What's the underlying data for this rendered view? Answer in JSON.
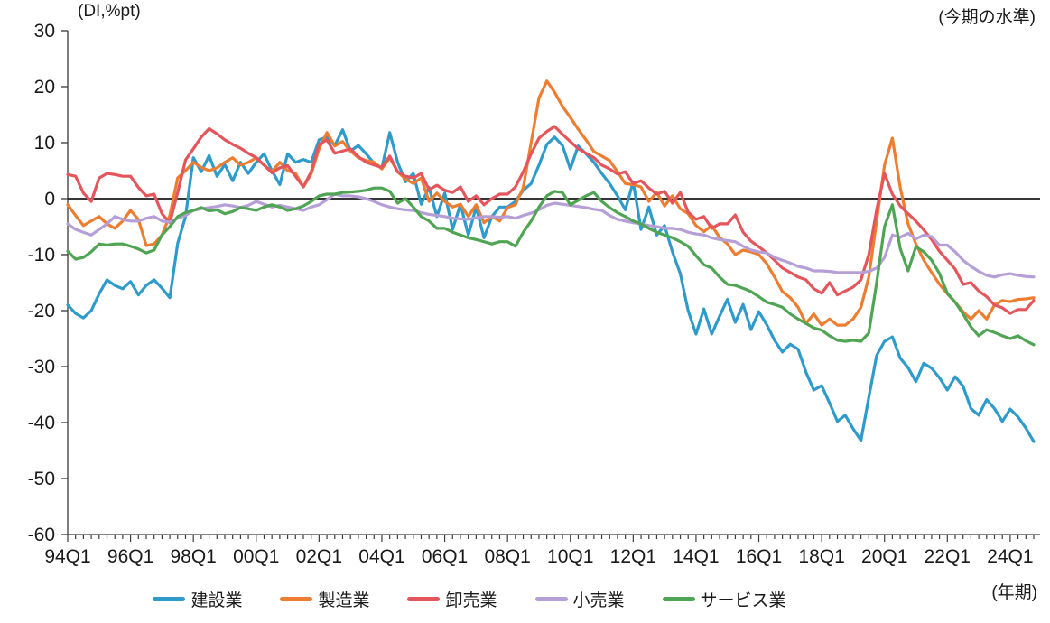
{
  "annotations": {
    "y_axis_unit": "(DI,%pt)",
    "right_header": "(今期の水準)",
    "x_axis_unit": "(年期)"
  },
  "chart_data": {
    "type": "line",
    "x_start": "1994Q1",
    "x_end": "2024Q4",
    "x_frequency": "quarterly",
    "x_tick_labels": [
      "94Q1",
      "96Q1",
      "98Q1",
      "00Q1",
      "02Q1",
      "04Q1",
      "06Q1",
      "08Q1",
      "10Q1",
      "12Q1",
      "14Q1",
      "16Q1",
      "18Q1",
      "20Q1",
      "22Q1",
      "24Q1"
    ],
    "x_label_every_n_quarters": 8,
    "ylim": [
      -60,
      30
    ],
    "y_ticks": [
      30,
      20,
      10,
      0,
      -10,
      -20,
      -30,
      -40,
      -50,
      -60
    ],
    "zero_line": true,
    "grid": false,
    "legend_position": "bottom",
    "axis_color": "#3a3a3a",
    "text_color": "#1a1a1a",
    "series": [
      {
        "name": "建設業",
        "color": "#2E9BCB",
        "values": [
          -19,
          -20.5,
          -21.3,
          -20,
          -17,
          -14.5,
          -15.5,
          -16.1,
          -14.8,
          -17.2,
          -15.5,
          -14.5,
          -16,
          -17.7,
          -8,
          -3.2,
          7.3,
          4.8,
          7.7,
          4,
          6.1,
          3.2,
          6.5,
          4.5,
          6.5,
          8,
          5,
          2.5,
          8,
          6.5,
          7,
          6.5,
          10.5,
          11,
          9.5,
          12.3,
          8.5,
          9.5,
          8,
          6.3,
          5.5,
          11.8,
          6.5,
          3,
          4.5,
          -1,
          2,
          -3.2,
          1,
          -5.5,
          -1,
          -6.5,
          -1.5,
          -7,
          -3.2,
          -1.5,
          -1.5,
          -0.5,
          1.5,
          2.7,
          6,
          9.7,
          11,
          9.5,
          5.3,
          9.4,
          8,
          6.5,
          4.5,
          2.7,
          0.5,
          -2,
          3,
          -5.5,
          -1.5,
          -6.5,
          -4.8,
          -9.5,
          -13.4,
          -20,
          -24.2,
          -19.7,
          -24.2,
          -21,
          -18,
          -22.1,
          -18.9,
          -23.4,
          -20.2,
          -22.5,
          -25.3,
          -27.4,
          -26,
          -26.9,
          -31,
          -34.2,
          -33.4,
          -36.5,
          -39.8,
          -38.7,
          -41.1,
          -43.2,
          -35.5,
          -28,
          -25.5,
          -24.7,
          -28.5,
          -30.2,
          -32.7,
          -29.4,
          -30.3,
          -32,
          -34.2,
          -31.8,
          -33.5,
          -37.5,
          -38.7,
          -35.9,
          -37.5,
          -39.8,
          -37.6,
          -39,
          -41,
          -43.4
        ]
      },
      {
        "name": "製造業",
        "color": "#ED7D31",
        "values": [
          -1.1,
          -3,
          -4.8,
          -4,
          -3.2,
          -4.5,
          -5.3,
          -4,
          -2.1,
          -3.7,
          -8.4,
          -8.1,
          -6.5,
          -3,
          3.7,
          5,
          6.5,
          5.6,
          5,
          5.5,
          6.5,
          7.3,
          6,
          6.5,
          7.3,
          6,
          4.8,
          6.5,
          5,
          4.5,
          2.1,
          4.4,
          8.9,
          11.8,
          9.4,
          10.2,
          8.5,
          7.3,
          6.8,
          6.5,
          5.3,
          7.3,
          4.8,
          3.5,
          2.7,
          3.7,
          -0.5,
          1,
          -0.5,
          -1.5,
          -1,
          -3.2,
          -1.1,
          -4.3,
          -3.2,
          -4,
          -1.6,
          -1.1,
          2,
          10,
          18,
          21,
          19,
          16.5,
          14.5,
          12.4,
          10.5,
          8.4,
          7.6,
          6.8,
          4.8,
          2.7,
          2.5,
          2.1,
          -0.5,
          1.1,
          -1.3,
          0.5,
          -1.8,
          -2.7,
          -4.8,
          -5.9,
          -4.8,
          -6.9,
          -8.1,
          -10,
          -9.2,
          -9.5,
          -10,
          -11.6,
          -14,
          -16.6,
          -17.7,
          -19.4,
          -22.3,
          -20.6,
          -22.6,
          -21.5,
          -22.6,
          -22.6,
          -21.5,
          -19.4,
          -14,
          -4,
          6,
          10.8,
          2,
          -4.5,
          -8.1,
          -11,
          -13.2,
          -15.3,
          -17,
          -18.5,
          -20.2,
          -21.5,
          -20,
          -21.5,
          -19,
          -18.2,
          -18.4,
          -18,
          -17.9,
          -17.7
        ]
      },
      {
        "name": "卸売業",
        "color": "#E4555C",
        "values": [
          4.3,
          4,
          1,
          -0.5,
          3.7,
          4.5,
          4.3,
          4,
          4,
          2,
          0.5,
          0.8,
          -2.7,
          -4.3,
          1.1,
          6.9,
          8.9,
          11,
          12.5,
          11.6,
          10.5,
          9.7,
          9,
          8.1,
          7.3,
          6,
          4.6,
          5.5,
          5.9,
          4,
          2.1,
          4.8,
          9.7,
          10.5,
          8.1,
          8.5,
          8.9,
          7.5,
          6.5,
          6,
          5.6,
          7.6,
          4.8,
          4,
          3.7,
          4.5,
          1.6,
          2.4,
          1.5,
          1.1,
          2.1,
          -0.5,
          0.5,
          -1.1,
          0,
          0.8,
          0.8,
          2.1,
          4.8,
          8,
          10.8,
          12,
          12.9,
          11.5,
          10.2,
          8.9,
          8.1,
          7.3,
          6,
          5.3,
          4.4,
          4.8,
          2.7,
          3.2,
          1.9,
          0.8,
          1.3,
          -0.8,
          1.1,
          -2.4,
          -3.7,
          -3.2,
          -5.3,
          -4.5,
          -4.5,
          -2.9,
          -6,
          -7.6,
          -8.6,
          -9.7,
          -11,
          -12.4,
          -13.2,
          -14,
          -14.5,
          -16.1,
          -16.9,
          -15,
          -17.2,
          -16.5,
          -15.8,
          -14.5,
          -10,
          -2,
          4.5,
          0.8,
          -1.3,
          -2.7,
          -4,
          -5.6,
          -7.3,
          -9.4,
          -11,
          -12.6,
          -15.3,
          -15,
          -16.5,
          -17.5,
          -19,
          -19.5,
          -20.5,
          -19.8,
          -19.8,
          -18.2
        ]
      },
      {
        "name": "小売業",
        "color": "#B59FD6",
        "values": [
          -4.5,
          -5.5,
          -6,
          -6.5,
          -5.5,
          -4.5,
          -3.2,
          -3.7,
          -4,
          -4,
          -3.5,
          -3.2,
          -4,
          -4.2,
          -3.5,
          -3,
          -2.1,
          -1.8,
          -1.6,
          -1.4,
          -1.1,
          -1.3,
          -1.6,
          -1.2,
          -0.5,
          -1,
          -1.5,
          -1.2,
          -1.5,
          -1.8,
          -2.1,
          -1.5,
          -1.1,
          -0.2,
          0.8,
          0.5,
          0.5,
          0.3,
          0,
          -0.5,
          -1.1,
          -1.5,
          -1.8,
          -2,
          -2.1,
          -2.5,
          -2.8,
          -3,
          -3.2,
          -3.5,
          -3.6,
          -3.7,
          -3.4,
          -3.2,
          -3.2,
          -3.3,
          -3.2,
          -3.5,
          -3,
          -2.6,
          -2,
          -1.2,
          -0.8,
          -1,
          -1.2,
          -1.4,
          -1.6,
          -1.9,
          -2.1,
          -3,
          -3.7,
          -4,
          -4.3,
          -4.5,
          -4.8,
          -5,
          -5.3,
          -5.3,
          -5.5,
          -6,
          -6.3,
          -6.5,
          -7,
          -7.3,
          -7.5,
          -7.7,
          -8.5,
          -9.2,
          -9.5,
          -9.7,
          -10.5,
          -11,
          -11.5,
          -12.1,
          -12.4,
          -12.9,
          -12.9,
          -13,
          -13.2,
          -13.2,
          -13.2,
          -13.2,
          -13,
          -12.4,
          -10.5,
          -6.5,
          -6.9,
          -6.2,
          -7.2,
          -6.5,
          -6.8,
          -8.3,
          -8.3,
          -9.5,
          -11,
          -12.1,
          -13,
          -13.7,
          -14,
          -13.6,
          -13.4,
          -13.7,
          -13.9,
          -14
        ]
      },
      {
        "name": "サービス業",
        "color": "#4FA553",
        "values": [
          -9.4,
          -10.8,
          -10.5,
          -9.5,
          -8.1,
          -8.3,
          -8.1,
          -8.1,
          -8.5,
          -9,
          -9.7,
          -9.2,
          -6.5,
          -5,
          -3.2,
          -2.5,
          -2.1,
          -1.6,
          -2.2,
          -2,
          -2.7,
          -2.3,
          -1.6,
          -1.8,
          -2.1,
          -1.5,
          -1.1,
          -1.5,
          -2.1,
          -1.8,
          -1.3,
          -0.5,
          0.5,
          0.8,
          0.8,
          1.1,
          1.2,
          1.3,
          1.5,
          1.9,
          1.9,
          1.3,
          -0.8,
          0,
          -1.5,
          -3.2,
          -4,
          -5.3,
          -5.3,
          -6,
          -6.5,
          -7,
          -7.3,
          -7.7,
          -8.1,
          -7.7,
          -7.7,
          -8.5,
          -6,
          -4,
          -1.5,
          0.5,
          1.3,
          1.1,
          -1.1,
          -0.3,
          0.5,
          1.1,
          -0.5,
          -1.6,
          -2.5,
          -3.2,
          -4,
          -4.5,
          -5.3,
          -6,
          -6.5,
          -7,
          -7.7,
          -8.5,
          -10.2,
          -11.8,
          -12.4,
          -14,
          -15.3,
          -15.5,
          -16,
          -16.6,
          -17.5,
          -18.5,
          -18.9,
          -19.4,
          -20.6,
          -21.5,
          -22.3,
          -23.1,
          -23.5,
          -24.5,
          -25.3,
          -25.5,
          -25.3,
          -25.5,
          -24,
          -15,
          -5,
          -1.1,
          -8.9,
          -12.9,
          -8.6,
          -9.5,
          -11,
          -13.4,
          -16.9,
          -18.5,
          -20.6,
          -22.9,
          -24.5,
          -23.4,
          -23.9,
          -24.5,
          -25,
          -24.5,
          -25.4,
          -26.1
        ]
      }
    ]
  }
}
